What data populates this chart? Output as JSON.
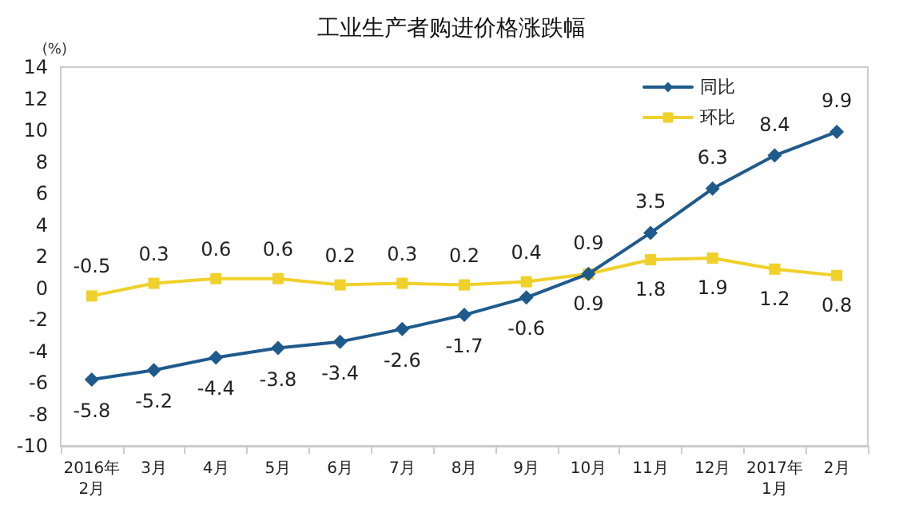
{
  "chart_data": {
    "type": "line",
    "title": "工业生产者购进价格涨跌幅",
    "ylabel": "(%)",
    "categories": [
      "2016年\n2月",
      "3月",
      "4月",
      "5月",
      "6月",
      "7月",
      "8月",
      "9月",
      "10月",
      "11月",
      "12月",
      "2017年\n1月",
      "2月"
    ],
    "series": [
      {
        "name": "同比",
        "color": "#1f5a8c",
        "marker": "diamond",
        "values": [
          -5.8,
          -5.2,
          -4.4,
          -3.8,
          -3.4,
          -2.6,
          -1.7,
          -0.6,
          0.9,
          3.5,
          6.3,
          8.4,
          9.9
        ]
      },
      {
        "name": "环比",
        "color": "#f0d02a",
        "marker": "square",
        "values": [
          -0.5,
          0.3,
          0.6,
          0.6,
          0.2,
          0.3,
          0.2,
          0.4,
          0.9,
          1.8,
          1.9,
          1.2,
          0.8
        ]
      }
    ],
    "ylim": [
      -10,
      14
    ],
    "yticks": [
      -10,
      -8,
      -6,
      -4,
      -2,
      0,
      2,
      4,
      6,
      8,
      10,
      12,
      14
    ],
    "grid": false,
    "legend": "top right",
    "data_labels": true
  }
}
